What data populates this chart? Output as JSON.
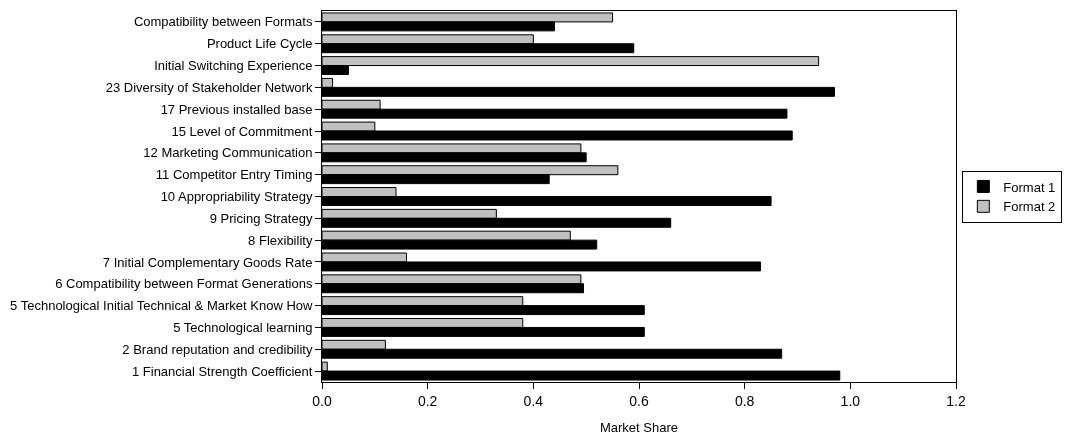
{
  "chart_data": {
    "type": "bar",
    "orientation": "horizontal",
    "xlabel": "Market Share",
    "categories": [
      "Compatibility between Formats",
      "Product Life Cycle",
      "Initial Switching Experience",
      "23 Diversity of Stakeholder Network",
      "17 Previous installed base",
      "15 Level of Commitment",
      "12 Marketing Communication",
      "11 Competitor Entry Timing",
      "10 Appropriability Strategy",
      "9 Pricing Strategy",
      "8 Flexibility",
      "7 Initial Complementary Goods Rate",
      "6 Compatibility between Format Generations",
      "5 Technological Initial Technical & Market Know How",
      "5 Technological learning",
      "2 Brand reputation and credibility",
      "1 Financial Strength Coefficient"
    ],
    "series": [
      {
        "name": "Format 1",
        "color": "#000000",
        "values": [
          0.44,
          0.59,
          0.05,
          0.97,
          0.88,
          0.89,
          0.5,
          0.43,
          0.85,
          0.66,
          0.52,
          0.83,
          0.495,
          0.61,
          0.61,
          0.87,
          0.98
        ]
      },
      {
        "name": "Format 2",
        "color": "#c0c0c0",
        "values": [
          0.55,
          0.4,
          0.94,
          0.02,
          0.11,
          0.1,
          0.49,
          0.56,
          0.14,
          0.33,
          0.47,
          0.16,
          0.49,
          0.38,
          0.38,
          0.12,
          0.01
        ]
      }
    ],
    "xlim": [
      0,
      1.2
    ],
    "xticks": [
      {
        "value": 0,
        "label": "0.0"
      },
      0.2,
      0.4,
      0.6,
      0.8,
      {
        "value": 1,
        "label": "1.0"
      },
      1.2
    ],
    "legend": "right"
  }
}
